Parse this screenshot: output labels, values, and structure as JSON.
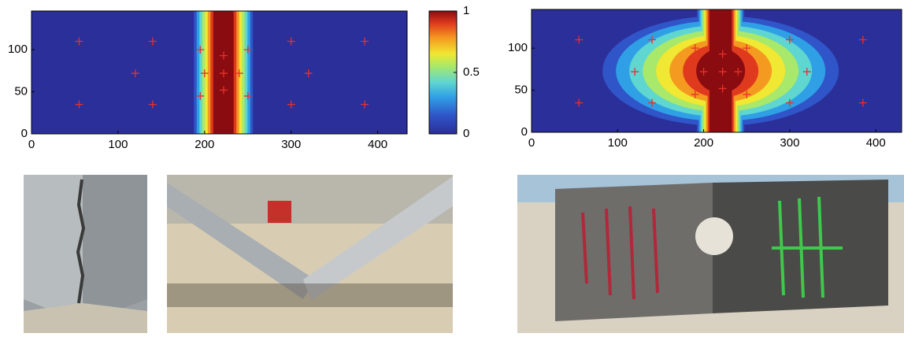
{
  "chart_data": [
    {
      "type": "contour",
      "xlim": [
        0,
        434
      ],
      "ylim": [
        0,
        146
      ],
      "xticks": [
        0,
        100,
        200,
        300,
        400
      ],
      "yticks": [
        0,
        50,
        100
      ],
      "points": {
        "color": "#e8302a",
        "x": [
          55,
          140,
          195,
          222,
          250,
          300,
          385,
          120,
          200,
          222,
          240,
          320,
          55,
          140,
          195,
          222,
          250,
          300,
          385
        ],
        "y": [
          110,
          110,
          100,
          93,
          100,
          110,
          110,
          72,
          72,
          72,
          72,
          72,
          35,
          35,
          45,
          52,
          45,
          35,
          35
        ]
      },
      "colorbar": {
        "clim": [
          0,
          1
        ],
        "ticks": [
          0,
          0.5,
          1
        ]
      }
    },
    {
      "type": "contour",
      "xlim": [
        0,
        430
      ],
      "ylim": [
        0,
        146
      ],
      "xticks": [
        0,
        100,
        200,
        300,
        400
      ],
      "yticks": [
        0,
        50,
        100
      ],
      "points": {
        "color": "#e8302a",
        "x": [
          55,
          140,
          190,
          222,
          250,
          300,
          385,
          120,
          200,
          222,
          240,
          320,
          55,
          140,
          190,
          222,
          250,
          300,
          385
        ],
        "y": [
          110,
          110,
          100,
          93,
          100,
          110,
          110,
          72,
          72,
          72,
          72,
          72,
          35,
          35,
          45,
          52,
          45,
          35,
          35
        ]
      }
    }
  ]
}
